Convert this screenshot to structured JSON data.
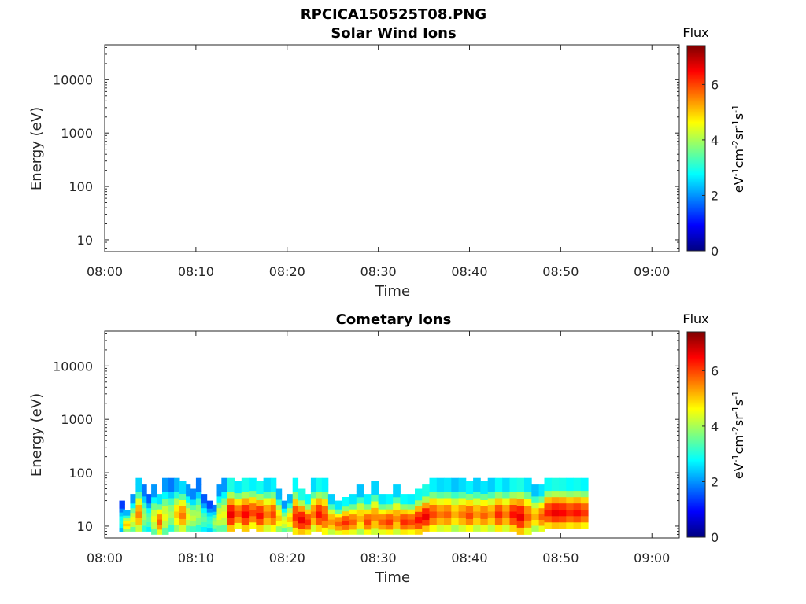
{
  "figure_title": "RPCICA150525T08.PNG",
  "colormap_colors": [
    "#00007f",
    "#0000ff",
    "#007fff",
    "#00ffff",
    "#7fff7f",
    "#ffff00",
    "#ff7f00",
    "#ff0000",
    "#7f0000"
  ],
  "chart_data": [
    {
      "type": "heatmap",
      "title": "Solar Wind Ions",
      "xlabel": "Time",
      "ylabel": "Energy (eV)",
      "x_ticks": [
        "08:00",
        "08:10",
        "08:20",
        "08:30",
        "08:40",
        "08:50",
        "09:00"
      ],
      "x_range_minutes": [
        0,
        63
      ],
      "y_scale": "log",
      "y_ticks": [
        "10",
        "100",
        "1000",
        "10000"
      ],
      "y_range": [
        6,
        45000
      ],
      "colorbar": {
        "title": "Flux",
        "label": "eV-1cm-2sr-1s-1",
        "ticks": [
          "0",
          "2",
          "4",
          "6"
        ],
        "range": [
          0,
          7.4
        ]
      },
      "blocks": []
    },
    {
      "type": "heatmap",
      "title": "Cometary Ions",
      "xlabel": "Time",
      "ylabel": "Energy (eV)",
      "x_ticks": [
        "08:00",
        "08:10",
        "08:20",
        "08:30",
        "08:40",
        "08:50",
        "09:00"
      ],
      "x_range_minutes": [
        0,
        63
      ],
      "y_scale": "log",
      "y_ticks": [
        "10",
        "100",
        "1000",
        "10000"
      ],
      "y_range": [
        6,
        45000
      ],
      "colorbar": {
        "title": "Flux",
        "label": "eV-1cm-2sr-1s-1",
        "ticks": [
          "0",
          "2",
          "4",
          "6"
        ],
        "range": [
          0,
          7.4
        ]
      },
      "blocks": [
        [
          1.6,
          2.2,
          8,
          30,
          3.0
        ],
        [
          2.0,
          2.8,
          8,
          20,
          5.0
        ],
        [
          2.8,
          3.4,
          8,
          40,
          4.5
        ],
        [
          3.4,
          4.1,
          8,
          80,
          5.5
        ],
        [
          4.1,
          4.6,
          8,
          60,
          4.0
        ],
        [
          4.6,
          5.1,
          8,
          40,
          3.5
        ],
        [
          5.1,
          5.7,
          7,
          60,
          4.5
        ],
        [
          5.7,
          6.3,
          7,
          40,
          5.8
        ],
        [
          6.3,
          7.0,
          7,
          80,
          4.5
        ],
        [
          7.0,
          7.6,
          8,
          80,
          4.0
        ],
        [
          7.6,
          8.2,
          8,
          80,
          5.0
        ],
        [
          8.2,
          8.9,
          8,
          70,
          5.6
        ],
        [
          8.9,
          9.4,
          8,
          60,
          4.5
        ],
        [
          9.4,
          10.0,
          8,
          50,
          4.2
        ],
        [
          10.0,
          10.6,
          8,
          80,
          4.0
        ],
        [
          10.6,
          11.2,
          8,
          40,
          3.5
        ],
        [
          11.2,
          11.8,
          8,
          30,
          3.2
        ],
        [
          11.8,
          12.3,
          8,
          25,
          4.0
        ],
        [
          12.3,
          12.8,
          8,
          60,
          4.5
        ],
        [
          12.8,
          13.4,
          8,
          80,
          4.5
        ],
        [
          13.4,
          14.2,
          8,
          80,
          6.6
        ],
        [
          14.2,
          15.0,
          9,
          70,
          5.9
        ],
        [
          15.0,
          15.8,
          8,
          80,
          6.5
        ],
        [
          15.8,
          16.6,
          9,
          80,
          6.0
        ],
        [
          16.6,
          17.4,
          8,
          70,
          6.4
        ],
        [
          17.4,
          18.2,
          8,
          80,
          5.6
        ],
        [
          18.2,
          18.8,
          8,
          80,
          6.0
        ],
        [
          18.8,
          19.4,
          8,
          50,
          5.0
        ],
        [
          19.4,
          20.0,
          8,
          30,
          4.5
        ],
        [
          20.0,
          20.6,
          8,
          40,
          5.0
        ],
        [
          20.6,
          21.2,
          7,
          80,
          6.2
        ],
        [
          21.2,
          22.0,
          7,
          50,
          6.6
        ],
        [
          22.0,
          22.6,
          7,
          40,
          6.2
        ],
        [
          22.6,
          23.2,
          8,
          80,
          5.6
        ],
        [
          23.2,
          23.8,
          8,
          80,
          6.4
        ],
        [
          23.8,
          24.5,
          7,
          80,
          6.0
        ],
        [
          24.5,
          25.2,
          7,
          40,
          5.4
        ],
        [
          25.2,
          26.0,
          7,
          30,
          5.8
        ],
        [
          26.0,
          26.8,
          7,
          35,
          6.2
        ],
        [
          26.8,
          27.6,
          7,
          40,
          5.8
        ],
        [
          27.6,
          28.4,
          7,
          60,
          5.2
        ],
        [
          28.4,
          29.2,
          7,
          40,
          6.0
        ],
        [
          29.2,
          30.0,
          7,
          70,
          5.5
        ],
        [
          30.0,
          30.8,
          7,
          40,
          5.8
        ],
        [
          30.8,
          31.6,
          7,
          40,
          6.1
        ],
        [
          31.6,
          32.4,
          7,
          60,
          5.5
        ],
        [
          32.4,
          33.2,
          7,
          40,
          6.2
        ],
        [
          33.2,
          34.0,
          7,
          40,
          6.0
        ],
        [
          34.0,
          34.8,
          7,
          50,
          6.4
        ],
        [
          34.8,
          35.6,
          8,
          60,
          6.6
        ],
        [
          35.6,
          36.4,
          8,
          80,
          6.0
        ],
        [
          36.4,
          37.2,
          8,
          80,
          5.6
        ],
        [
          37.2,
          38.0,
          8,
          80,
          5.8
        ],
        [
          38.0,
          38.8,
          8,
          80,
          5.2
        ],
        [
          38.8,
          39.6,
          8,
          80,
          5.6
        ],
        [
          39.6,
          40.4,
          8,
          70,
          6.0
        ],
        [
          40.4,
          41.2,
          8,
          80,
          5.4
        ],
        [
          41.2,
          42.0,
          8,
          70,
          5.8
        ],
        [
          42.0,
          42.8,
          8,
          80,
          5.4
        ],
        [
          42.8,
          43.6,
          8,
          80,
          6.2
        ],
        [
          43.6,
          44.4,
          8,
          80,
          5.6
        ],
        [
          44.4,
          45.2,
          8,
          80,
          6.4
        ],
        [
          45.2,
          46.0,
          7,
          80,
          6.6
        ],
        [
          46.0,
          46.8,
          7,
          80,
          5.8
        ],
        [
          46.8,
          47.6,
          8,
          60,
          5.2
        ],
        [
          47.6,
          48.2,
          8,
          60,
          5.8
        ],
        [
          48.2,
          49.0,
          9,
          80,
          6.3
        ],
        [
          49.0,
          49.8,
          9,
          80,
          6.6
        ],
        [
          49.8,
          50.6,
          9,
          80,
          6.5
        ],
        [
          50.6,
          51.4,
          9,
          80,
          6.2
        ],
        [
          51.4,
          52.2,
          9,
          80,
          6.4
        ],
        [
          52.2,
          53.0,
          9,
          80,
          6.1
        ]
      ]
    }
  ]
}
